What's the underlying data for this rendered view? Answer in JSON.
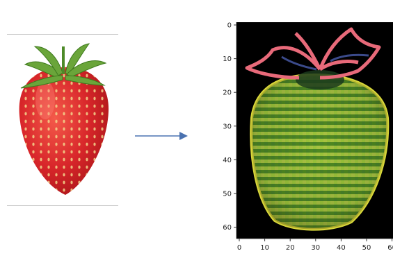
{
  "figure": {
    "input_image": {
      "subject": "strawberry-photo"
    },
    "arrow": {
      "color": "#4a72b0"
    },
    "output_plot": {
      "image_size": 64,
      "x_tick_labels": [
        "0",
        "10",
        "20",
        "30",
        "40",
        "50",
        "60"
      ],
      "y_tick_labels": [
        "0",
        "10",
        "20",
        "30",
        "40",
        "50",
        "60"
      ],
      "background_color": "#000000"
    }
  }
}
